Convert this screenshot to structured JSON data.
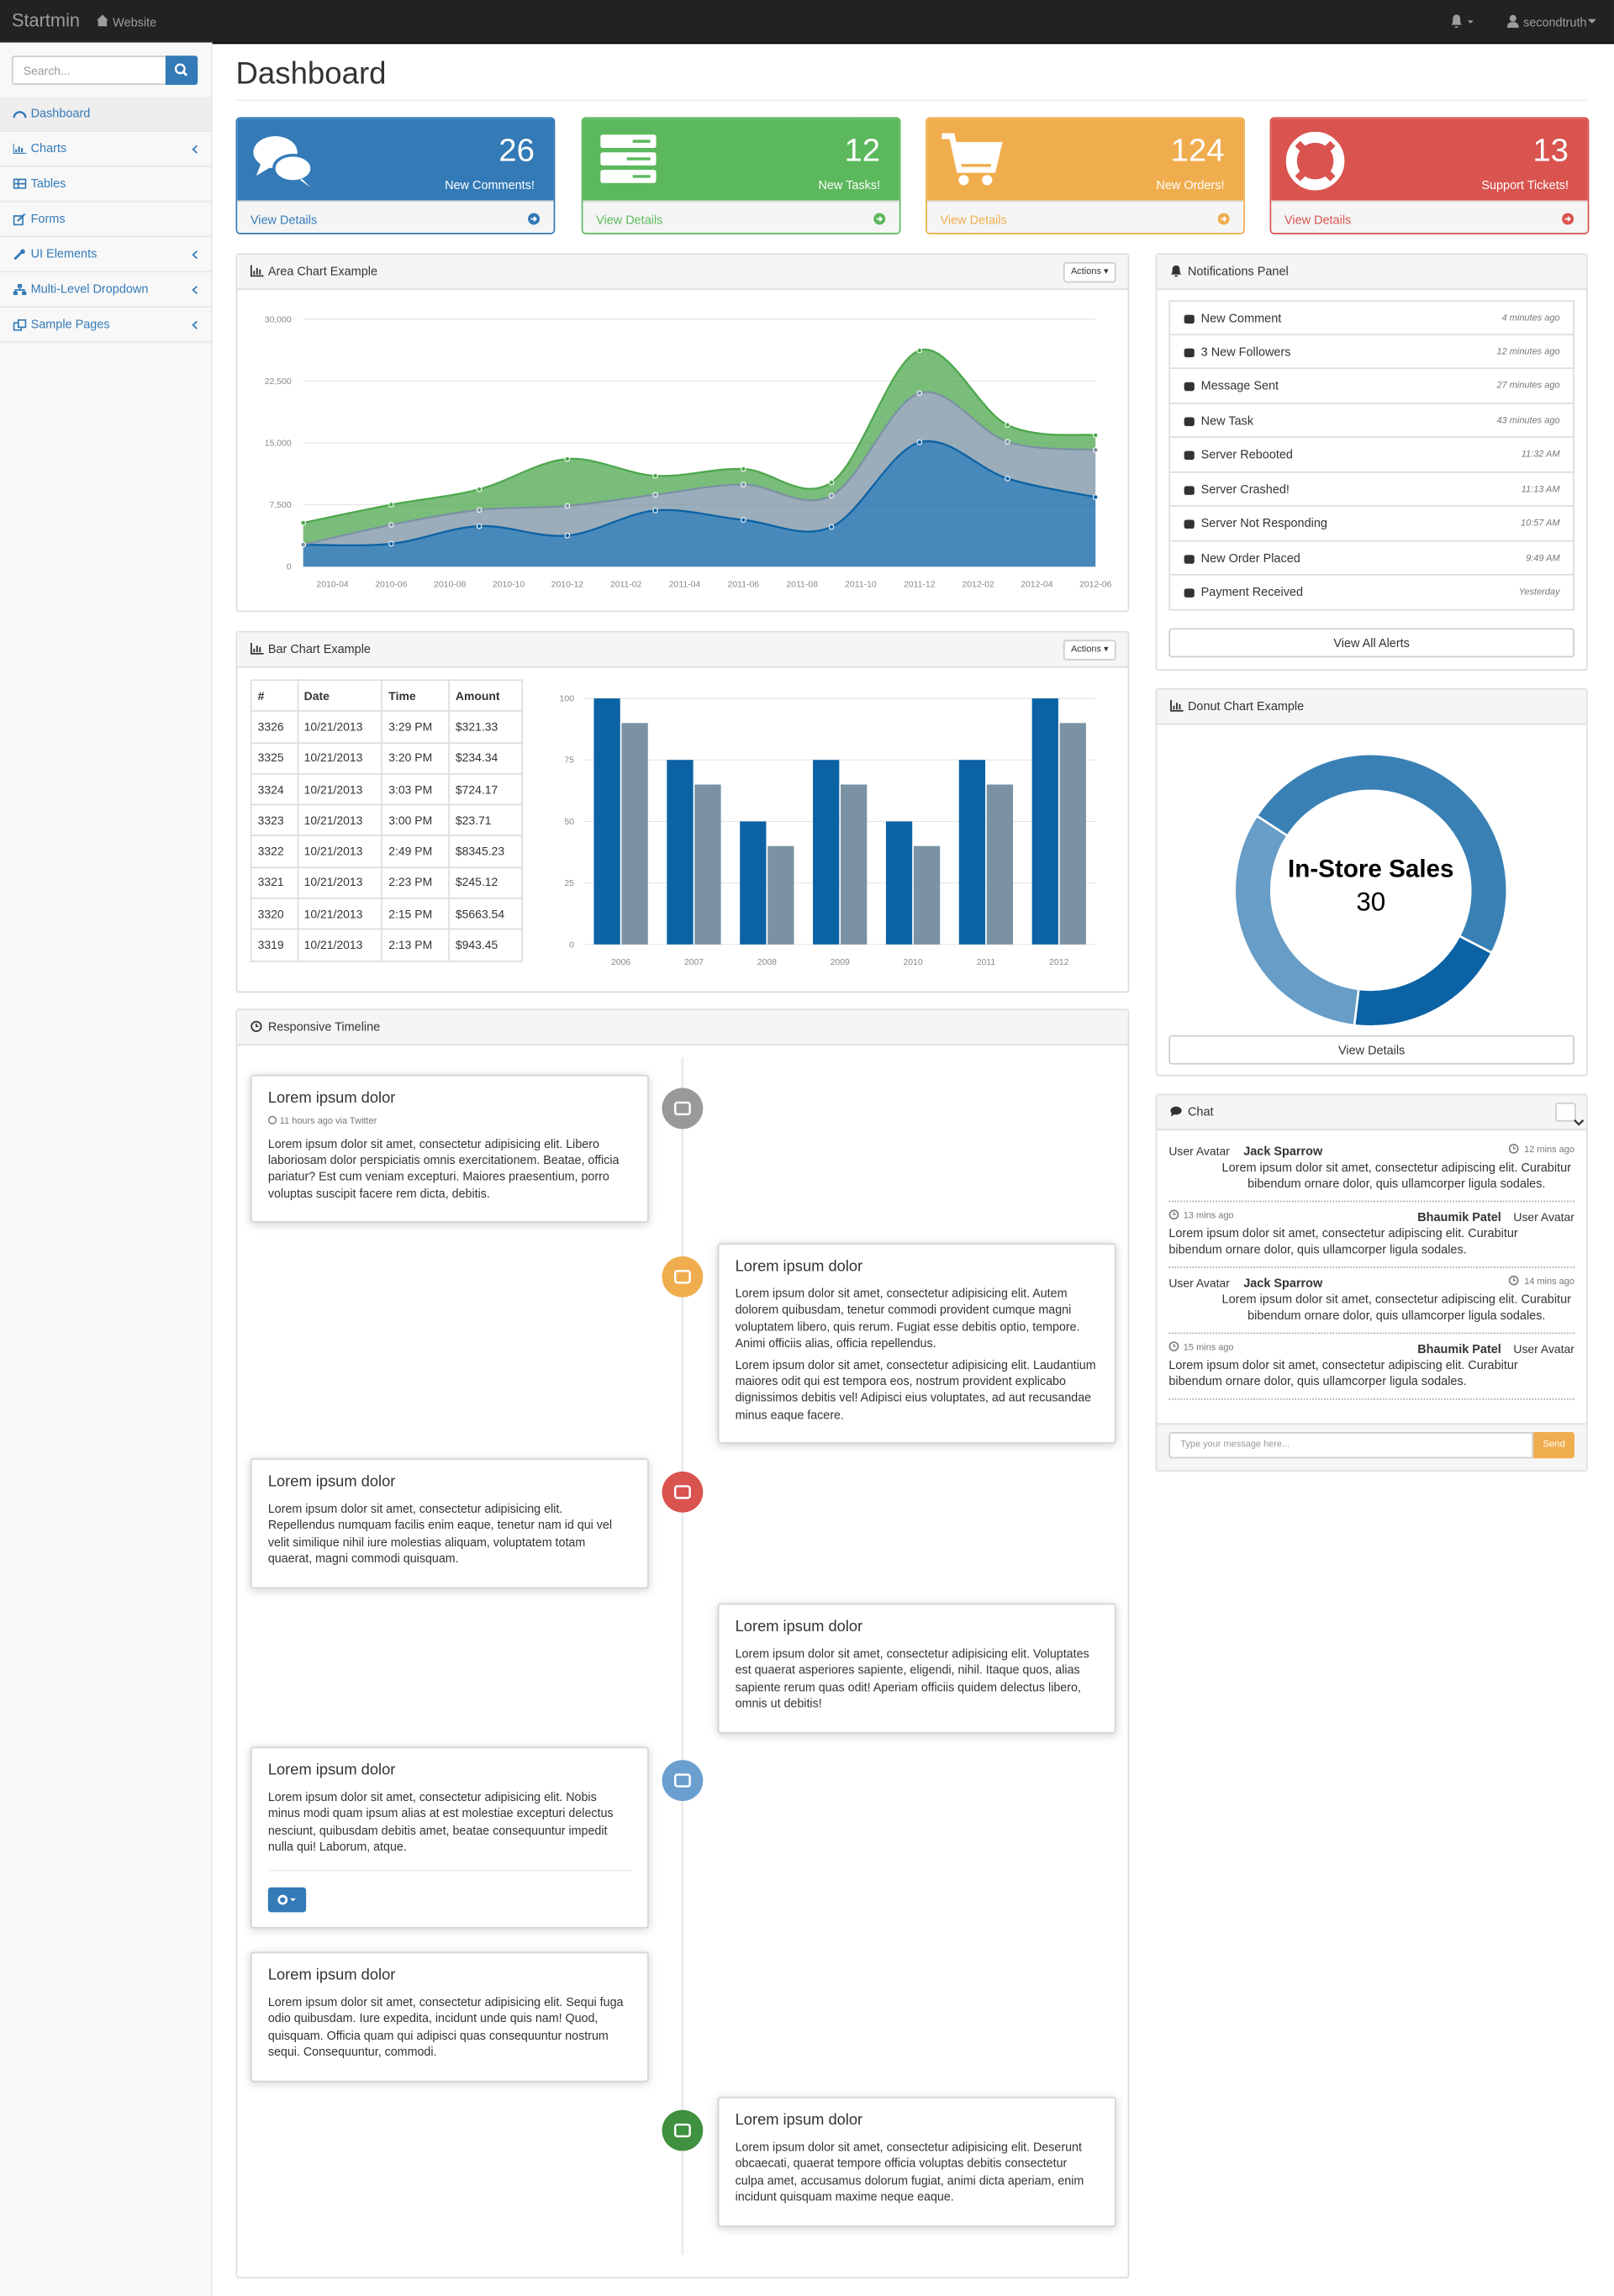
{
  "navbar": {
    "brand": "Startmin",
    "link": "Website",
    "user": "secondtruth"
  },
  "sidebar": {
    "search_placeholder": "Search...",
    "menu": [
      "Dashboard",
      "Charts",
      "Tables",
      "Forms",
      "UI Elements",
      "Multi-Level Dropdown",
      "Sample Pages"
    ]
  },
  "page_title": "Dashboard",
  "stats": [
    {
      "count": 26,
      "label": "New Comments!",
      "link": "View Details",
      "color": "#337ab7"
    },
    {
      "count": 12,
      "label": "New Tasks!",
      "link": "View Details",
      "color": "#5cb85c"
    },
    {
      "count": 124,
      "label": "New Orders!",
      "link": "View Details",
      "color": "#f0ad4e"
    },
    {
      "count": 13,
      "label": "Support Tickets!",
      "link": "View Details",
      "color": "#d9534f"
    }
  ],
  "area_panel": {
    "heading": "Area Chart Example",
    "button": "Actions"
  },
  "bar_panel": {
    "heading": "Bar Chart Example",
    "button": "Actions",
    "table": {
      "header": [
        "#",
        "Date",
        "Time",
        "Amount"
      ],
      "rows": [
        [
          3326,
          "10/21/2013",
          "3:29 PM",
          "$321.33"
        ],
        [
          3325,
          "10/21/2013",
          "3:20 PM",
          "$234.34"
        ],
        [
          3324,
          "10/21/2013",
          "3:03 PM",
          "$724.17"
        ],
        [
          3323,
          "10/21/2013",
          "3:00 PM",
          "$23.71"
        ],
        [
          3322,
          "10/21/2013",
          "2:49 PM",
          "$8345.23"
        ],
        [
          3321,
          "10/21/2013",
          "2:23 PM",
          "$245.12"
        ],
        [
          3320,
          "10/21/2013",
          "2:15 PM",
          "$5663.54"
        ],
        [
          3319,
          "10/21/2013",
          "2:13 PM",
          "$943.45"
        ]
      ]
    }
  },
  "chart_data": [
    {
      "type": "area",
      "stacked": true,
      "grid": true,
      "x": [
        "2010-03",
        "2010-06",
        "2010-09",
        "2010-12",
        "2011-03",
        "2011-06",
        "2011-09",
        "2011-12",
        "2012-03",
        "2012-06"
      ],
      "xlim": [
        "2010-03",
        "2012-06"
      ],
      "xticks": [
        "2010-04",
        "2010-06",
        "2010-08",
        "2010-10",
        "2010-12",
        "2011-02",
        "2011-04",
        "2011-06",
        "2011-08",
        "2011-10",
        "2011-12",
        "2012-02",
        "2012-04",
        "2012-06"
      ],
      "ylim": [
        0,
        30000
      ],
      "yticks": [
        0,
        {
          "value": 7500,
          "label": "7,500"
        },
        {
          "value": 15000,
          "label": "15,000"
        },
        {
          "value": 22500,
          "label": "22,500"
        },
        {
          "value": 30000,
          "label": "30,000"
        }
      ],
      "series": [
        {
          "color": "#0b62a4",
          "values": [
            2666,
            2778,
            4912,
            3767,
            6810,
            5670,
            4820,
            15073,
            10687,
            8432
          ]
        },
        {
          "color": "#7a92a3",
          "values": [
            0,
            2294,
            1969,
            3597,
            1914,
            4293,
            3795,
            5967,
            4460,
            5713
          ]
        },
        {
          "color": "#4da74d",
          "values": [
            2647,
            2441,
            2501,
            5689,
            2293,
            1881,
            1588,
            5175,
            2028,
            1791
          ]
        }
      ]
    },
    {
      "type": "bar",
      "grid": true,
      "categories": [
        "2006",
        "2007",
        "2008",
        "2009",
        "2010",
        "2011",
        "2012"
      ],
      "ylim": [
        0,
        100
      ],
      "yticks": [
        0,
        25,
        50,
        75,
        100
      ],
      "series": [
        {
          "color": "#0b62a4",
          "values": [
            100,
            75,
            50,
            75,
            50,
            75,
            100
          ]
        },
        {
          "color": "#7a92a3",
          "values": [
            90,
            65,
            40,
            65,
            40,
            65,
            90
          ]
        }
      ]
    },
    {
      "type": "donut",
      "categories": [
        null,
        "In-Store Sales",
        null
      ],
      "values": [
        12,
        30,
        20
      ],
      "colors": [
        "#0b62a4",
        "#3980b5",
        "#679dc6"
      ]
    }
  ],
  "notifications": {
    "heading": "Notifications Panel",
    "button": "View All Alerts",
    "items": [
      {
        "text": "New Comment",
        "time": "4 minutes ago"
      },
      {
        "text": "3 New Followers",
        "time": "12 minutes ago"
      },
      {
        "text": "Message Sent",
        "time": "27 minutes ago"
      },
      {
        "text": "New Task",
        "time": "43 minutes ago"
      },
      {
        "text": "Server Rebooted",
        "time": "11:32 AM"
      },
      {
        "text": "Server Crashed!",
        "time": "11:13 AM"
      },
      {
        "text": "Server Not Responding",
        "time": "10:57 AM"
      },
      {
        "text": "New Order Placed",
        "time": "9:49 AM"
      },
      {
        "text": "Payment Received",
        "time": "Yesterday"
      }
    ]
  },
  "donut_panel": {
    "heading": "Donut Chart Example",
    "button": "View Details"
  },
  "chat": {
    "heading": "Chat",
    "placeholder": "Type your message here...",
    "button": "Send",
    "messages": [
      {
        "avatar": "User Avatar",
        "name": "Jack Sparrow",
        "time": "12 mins ago",
        "text": "Lorem ipsum dolor sit amet, consectetur adipiscing elit. Curabitur bibendum ornare dolor, quis ullamcorper ligula sodales."
      },
      {
        "avatar": "User Avatar",
        "name": "Bhaumik Patel",
        "time": "13 mins ago",
        "text": "Lorem ipsum dolor sit amet, consectetur adipiscing elit. Curabitur bibendum ornare dolor, quis ullamcorper ligula sodales."
      },
      {
        "avatar": "User Avatar",
        "name": "Jack Sparrow",
        "time": "14 mins ago",
        "text": "Lorem ipsum dolor sit amet, consectetur adipiscing elit. Curabitur bibendum ornare dolor, quis ullamcorper ligula sodales."
      },
      {
        "avatar": "User Avatar",
        "name": "Bhaumik Patel",
        "time": "15 mins ago",
        "text": "Lorem ipsum dolor sit amet, consectetur adipiscing elit. Curabitur bibendum ornare dolor, quis ullamcorper ligula sodales."
      }
    ]
  },
  "timeline": {
    "heading": "Responsive Timeline",
    "items": [
      {
        "heading": "Lorem ipsum dolor",
        "meta": "11 hours ago via Twitter",
        "paragraphs": [
          "Lorem ipsum dolor sit amet, consectetur adipisicing elit. Libero laboriosam dolor perspiciatis omnis exercitationem. Beatae, officia pariatur? Est cum veniam excepturi. Maiores praesentium, porro voluptas suscipit facere rem dicta, debitis."
        ]
      },
      {
        "heading": "Lorem ipsum dolor",
        "paragraphs": [
          "Lorem ipsum dolor sit amet, consectetur adipisicing elit. Autem dolorem quibusdam, tenetur commodi provident cumque magni voluptatem libero, quis rerum. Fugiat esse debitis optio, tempore. Animi officiis alias, officia repellendus.",
          "Lorem ipsum dolor sit amet, consectetur adipisicing elit. Laudantium maiores odit qui est tempora eos, nostrum provident explicabo dignissimos debitis vel! Adipisci eius voluptates, ad aut recusandae minus eaque facere."
        ]
      },
      {
        "heading": "Lorem ipsum dolor",
        "paragraphs": [
          "Lorem ipsum dolor sit amet, consectetur adipisicing elit. Repellendus numquam facilis enim eaque, tenetur nam id qui vel velit similique nihil iure molestias aliquam, voluptatem totam quaerat, magni commodi quisquam."
        ]
      },
      {
        "heading": "Lorem ipsum dolor",
        "paragraphs": [
          "Lorem ipsum dolor sit amet, consectetur adipisicing elit. Voluptates est quaerat asperiores sapiente, eligendi, nihil. Itaque quos, alias sapiente rerum quas odit! Aperiam officiis quidem delectus libero, omnis ut debitis!"
        ]
      },
      {
        "heading": "Lorem ipsum dolor",
        "paragraphs": [
          "Lorem ipsum dolor sit amet, consectetur adipisicing elit. Nobis minus modi quam ipsum alias at est molestiae excepturi delectus nesciunt, quibusdam debitis amet, beatae consequuntur impedit nulla qui! Laborum, atque."
        ]
      },
      {
        "heading": "Lorem ipsum dolor",
        "paragraphs": [
          "Lorem ipsum dolor sit amet, consectetur adipisicing elit. Sequi fuga odio quibusdam. Iure expedita, incidunt unde quis nam! Quod, quisquam. Officia quam qui adipisci quas consequuntur nostrum sequi. Consequuntur, commodi."
        ]
      },
      {
        "heading": "Lorem ipsum dolor",
        "paragraphs": [
          "Lorem ipsum dolor sit amet, consectetur adipisicing elit. Deserunt obcaecati, quaerat tempore officia voluptas debitis consectetur culpa amet, accusamus dolorum fugiat, animi dicta aperiam, enim incidunt quisquam maxime neque eaque."
        ]
      }
    ]
  }
}
